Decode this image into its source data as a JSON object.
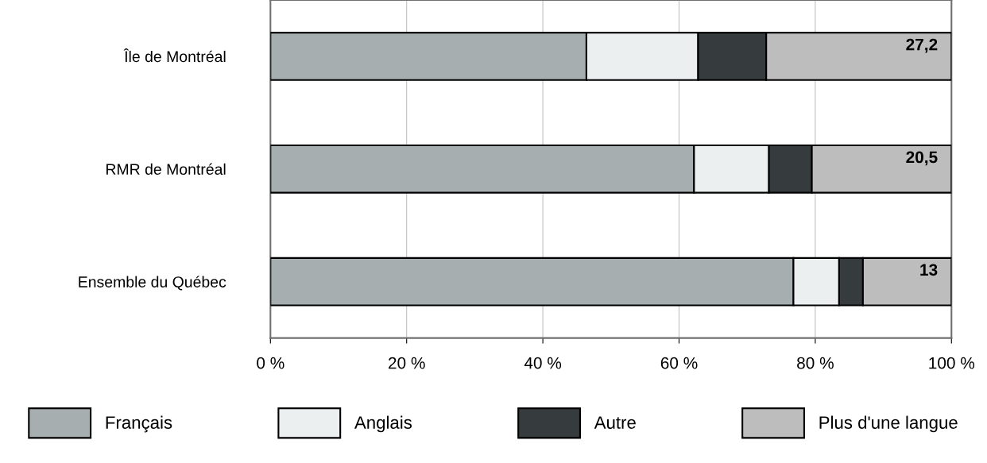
{
  "chart_data": {
    "type": "bar",
    "orientation": "horizontal",
    "stacked": true,
    "categories": [
      "Île de Montréal",
      "RMR de Montréal",
      "Ensemble du Québec"
    ],
    "series": [
      {
        "name": "Français",
        "color": "#a7aeb0",
        "values": [
          46.4,
          62.2,
          76.8
        ]
      },
      {
        "name": "Anglais",
        "color": "#eceff0",
        "values": [
          16.4,
          11.0,
          6.7
        ]
      },
      {
        "name": "Autre",
        "color": "#363b3e",
        "values": [
          10.0,
          6.3,
          3.5
        ]
      },
      {
        "name": "Plus d'une langue",
        "color": "#bdbdbd",
        "values": [
          27.2,
          20.5,
          13
        ],
        "value_labels": [
          "27,2",
          "20,5",
          "13"
        ]
      }
    ],
    "xlim": [
      0,
      100
    ],
    "xticks": [
      {
        "value": 0,
        "label": "0 %"
      },
      {
        "value": 20,
        "label": "20 %"
      },
      {
        "value": 40,
        "label": "40 %"
      },
      {
        "value": 60,
        "label": "60 %"
      },
      {
        "value": 80,
        "label": "80 %"
      },
      {
        "value": 100,
        "label": "100 %"
      }
    ],
    "grid": "x",
    "legend": "bottom"
  }
}
